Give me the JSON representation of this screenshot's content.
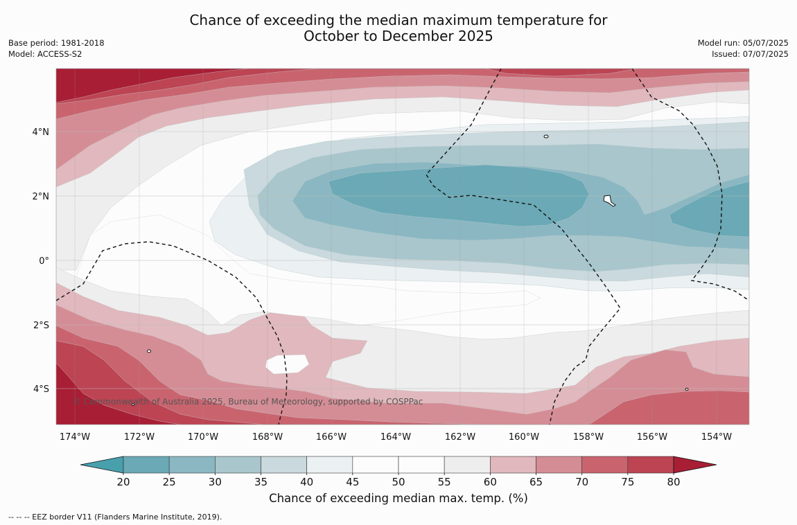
{
  "title": {
    "line1": "Chance of exceeding the median maximum temperature for",
    "line2": "October to December 2025"
  },
  "meta_left": {
    "base_period": "Base period: 1981-2018",
    "model": "Model: ACCESS-S2"
  },
  "meta_right": {
    "model_run": "Model run: 05/07/2025",
    "issued": "Issued: 07/07/2025"
  },
  "map": {
    "lat_labels": [
      "4°N",
      "2°N",
      "0°",
      "2°S",
      "4°S"
    ],
    "lon_labels": [
      "174°W",
      "172°W",
      "170°W",
      "168°W",
      "166°W",
      "164°W",
      "162°W",
      "160°W",
      "158°W",
      "156°W",
      "154°W"
    ],
    "copyright": "© Commonwealth of Australia 2025, Bureau of Meteorology, supported by COSPPac"
  },
  "colorbar": {
    "ticks": [
      "20",
      "25",
      "30",
      "35",
      "40",
      "45",
      "50",
      "55",
      "60",
      "65",
      "70",
      "75",
      "80"
    ],
    "colors": [
      "#48a0ad",
      "#6aa9b5",
      "#8ab7c2",
      "#a8c6cc",
      "#c9d9dd",
      "#ebf0f2",
      "#fcfcfc",
      "#fcfcfc",
      "#eeeeee",
      "#e0b8bd",
      "#d58d95",
      "#c9646f",
      "#bc4453",
      "#a81e35"
    ],
    "label": "Chance of exceeding median max. temp. (%)"
  },
  "footer": "--  --  -- EEZ border V11 (Flanders Marine Institute, 2019)."
}
